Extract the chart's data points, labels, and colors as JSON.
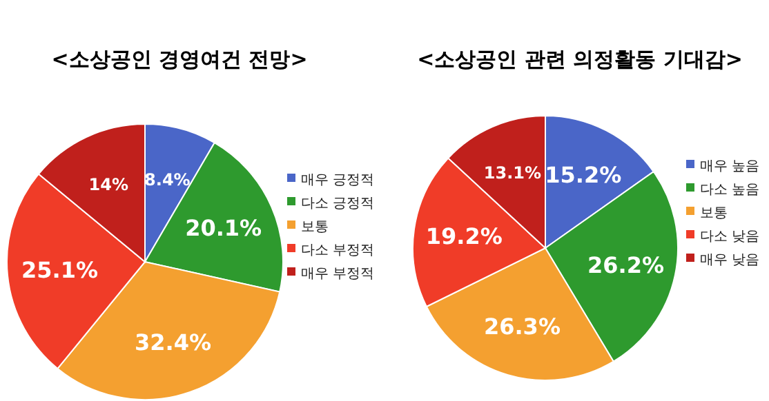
{
  "chart_data": [
    {
      "type": "pie",
      "title": "<소상공인 경영여건 전망>",
      "categories": [
        "매우 긍정적",
        "다소 긍정적",
        "보통",
        "다소 부정적",
        "매우 부정적"
      ],
      "values": [
        8.4,
        20.1,
        32.4,
        25.1,
        14
      ],
      "colors": [
        "#4a66c8",
        "#2e9a2e",
        "#f4a030",
        "#f03c28",
        "#c0201c"
      ],
      "value_labels": [
        "8.4%",
        "20.1%",
        "32.4%",
        "25.1%",
        "14%"
      ],
      "legend": "right"
    },
    {
      "type": "pie",
      "title": "<소상공인 관련 의정활동 기대감>",
      "categories": [
        "매우 높음",
        "다소 높음",
        "보통",
        "다소 낮음",
        "매우 낮음"
      ],
      "values": [
        15.2,
        26.2,
        26.3,
        19.2,
        13.1
      ],
      "colors": [
        "#4a66c8",
        "#2e9a2e",
        "#f4a030",
        "#f03c28",
        "#c0201c"
      ],
      "value_labels": [
        "15.2%",
        "26.2%",
        "26.3%",
        "19.2%",
        "13.1%"
      ],
      "legend": "right"
    }
  ]
}
